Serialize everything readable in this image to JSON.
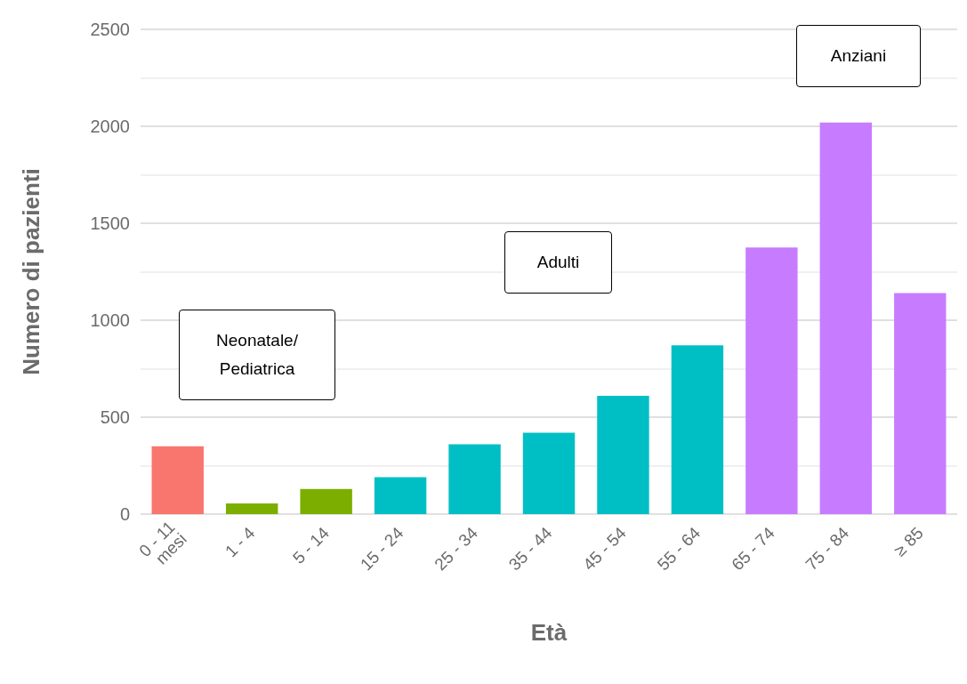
{
  "chart_data": {
    "type": "bar",
    "xlabel": "Età",
    "ylabel": "Numero di pazienti",
    "categories": [
      "0 - 11\nmesi",
      "1 - 4",
      "5 - 14",
      "15 - 24",
      "25 - 34",
      "35 - 44",
      "45 - 54",
      "55 - 64",
      "65 - 74",
      "75 - 84",
      "≥ 85"
    ],
    "values": [
      350,
      55,
      130,
      190,
      360,
      420,
      610,
      870,
      1375,
      2020,
      1140
    ],
    "colors": [
      "#f8766d",
      "#7cae00",
      "#7cae00",
      "#00bfc4",
      "#00bfc4",
      "#00bfc4",
      "#00bfc4",
      "#00bfc4",
      "#c77cff",
      "#c77cff",
      "#c77cff"
    ],
    "ylim": [
      0,
      2500
    ],
    "yticks": [
      0,
      {
        "value": 250,
        "label": null
      },
      500,
      {
        "value": 750,
        "label": null
      },
      1000,
      {
        "value": 1250,
        "label": null
      },
      1500,
      {
        "value": 1750,
        "label": null
      },
      2000,
      {
        "value": 2250,
        "label": null
      },
      2500
    ],
    "grid": "y",
    "annotations": [
      "Neonatale/\nPediatrica",
      "Adulti",
      "Anziani"
    ]
  }
}
